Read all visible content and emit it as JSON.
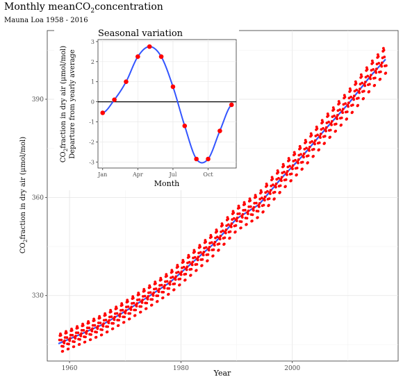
{
  "title": {
    "prefix": "Monthly mean",
    "chem": "CO",
    "sub": "2",
    "suffix": "concentration"
  },
  "subtitle": "Mauna Loa 1958 - 2016",
  "chart_data": [
    {
      "type": "scatter",
      "role": "main",
      "xlabel": "Year",
      "ylabel": {
        "pre": "CO",
        "sub": "2",
        "post": "fraction in dry air (μmol/mol)"
      },
      "xlim": [
        1956,
        2019
      ],
      "ylim": [
        310,
        411
      ],
      "xticks": [
        1960,
        1980,
        2000
      ],
      "yticks": [
        330,
        360,
        390
      ],
      "grid": true,
      "point_color": "#ff0000",
      "trend_color": "#3355ff",
      "trend": {
        "x": [
          1958,
          1962,
          1966,
          1970,
          1974,
          1978,
          1982,
          1986,
          1990,
          1994,
          1998,
          2002,
          2006,
          2010,
          2014,
          2016.9
        ],
        "y": [
          315.3,
          318.2,
          321.2,
          325.2,
          329.5,
          334.0,
          340.0,
          346.0,
          353.5,
          357.8,
          365.8,
          373.0,
          381.0,
          388.5,
          397.0,
          402.5
        ]
      },
      "seasonal_amplitude": 3.0,
      "start_year": 1958.2,
      "end_year": 2016.9
    },
    {
      "type": "line",
      "role": "inset",
      "title": "Seasonal variation",
      "xlabel": "Month",
      "ylabel_line1": {
        "pre": "CO",
        "sub": "2",
        "post": "fraction in dry air (μmol/mol)"
      },
      "ylabel_line2": "Departure from yearly average",
      "xticks": [
        {
          "v": 1,
          "label": "Jan"
        },
        {
          "v": 4,
          "label": "Apr"
        },
        {
          "v": 7,
          "label": "Jul"
        },
        {
          "v": 10,
          "label": "Oct"
        }
      ],
      "yticks": [
        -3,
        -2,
        -1,
        0,
        1,
        2,
        3
      ],
      "xlim": [
        0.6,
        12.4
      ],
      "ylim": [
        -3.3,
        3.1
      ],
      "months": [
        1,
        2,
        3,
        4,
        5,
        6,
        7,
        8,
        9,
        10,
        11,
        12
      ],
      "values": [
        -0.55,
        0.1,
        1.0,
        2.25,
        2.75,
        2.25,
        0.75,
        -1.2,
        -2.85,
        -2.85,
        -1.45,
        -0.15
      ],
      "point_color": "#ff0000",
      "line_color": "#3355ff"
    }
  ]
}
